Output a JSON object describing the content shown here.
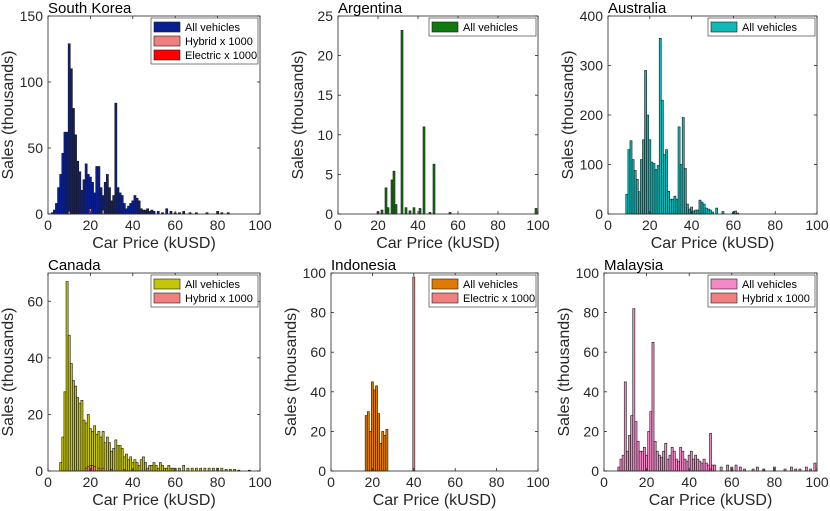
{
  "chart_data": [
    {
      "type": "histogram",
      "title": "South Korea",
      "xlabel": "Car Price (kUSD)",
      "ylabel": "Sales (thousands)",
      "xlim": [
        0,
        100
      ],
      "ylim": [
        0,
        150
      ],
      "xticks": [
        "0",
        "20",
        "40",
        "60",
        "80",
        "100"
      ],
      "yticks": [
        "0",
        "50",
        "100",
        "150"
      ],
      "legend_position": "top-right",
      "series": [
        {
          "name": "All vehicles",
          "color": "#0a1f8f",
          "bin_width": 1,
          "x": [
            2,
            3,
            4,
            5,
            6,
            7,
            8,
            9,
            10,
            11,
            12,
            13,
            14,
            15,
            16,
            17,
            18,
            19,
            20,
            21,
            22,
            23,
            24,
            25,
            26,
            27,
            28,
            29,
            30,
            31,
            32,
            33,
            34,
            35,
            36,
            37,
            38,
            39,
            40,
            41,
            42,
            43,
            44,
            45,
            46,
            47,
            48,
            49,
            50,
            52,
            54,
            56,
            58,
            60,
            62,
            64,
            67,
            70,
            75,
            80,
            82,
            85
          ],
          "y": [
            1,
            3,
            8,
            20,
            30,
            46,
            62,
            62,
            129,
            110,
            80,
            60,
            40,
            32,
            18,
            26,
            38,
            30,
            28,
            24,
            16,
            36,
            36,
            20,
            14,
            24,
            30,
            20,
            10,
            14,
            84,
            20,
            16,
            14,
            8,
            4,
            6,
            8,
            10,
            14,
            12,
            10,
            4,
            3,
            3,
            4,
            2,
            3,
            2,
            2,
            1,
            4,
            2,
            1,
            1,
            2,
            1,
            1,
            1,
            2,
            1,
            1
          ]
        },
        {
          "name": "Hybrid x 1000",
          "color": "#f08080",
          "bin_width": 1,
          "x": [
            10,
            20,
            26
          ],
          "y": [
            2,
            4,
            3
          ]
        },
        {
          "name": "Electric x 1000",
          "color": "#ff0000",
          "bin_width": 1,
          "x": [
            40
          ],
          "y": [
            0.5
          ]
        }
      ]
    },
    {
      "type": "histogram",
      "title": "Argentina",
      "xlabel": "Car Price (kUSD)",
      "ylabel": "Sales (thousands)",
      "xlim": [
        0,
        100
      ],
      "ylim": [
        0,
        25
      ],
      "xticks": [
        "0",
        "20",
        "40",
        "60",
        "80",
        "100"
      ],
      "yticks": [
        "0",
        "5",
        "10",
        "15",
        "20",
        "25"
      ],
      "legend_position": "top-right",
      "series": [
        {
          "name": "All vehicles",
          "color": "#0f7a0f",
          "bin_width": 1,
          "x": [
            20,
            22,
            24,
            25,
            27,
            28,
            29,
            32,
            34,
            36,
            38,
            41,
            43,
            46,
            48,
            56,
            99
          ],
          "y": [
            0.3,
            0.5,
            3.3,
            0.8,
            4.3,
            5.4,
            1.2,
            23.2,
            0.8,
            0.4,
            0.8,
            0.7,
            11.0,
            0.2,
            6.3,
            0.2,
            0.7
          ]
        }
      ]
    },
    {
      "type": "histogram",
      "title": "Australia",
      "xlabel": "Car Price (kUSD)",
      "ylabel": "Sales (thousands)",
      "xlim": [
        0,
        100
      ],
      "ylim": [
        0,
        400
      ],
      "xticks": [
        "0",
        "20",
        "40",
        "60",
        "80",
        "100"
      ],
      "yticks": [
        "0",
        "100",
        "200",
        "300",
        "400"
      ],
      "legend_position": "top-right",
      "series": [
        {
          "name": "All vehicles",
          "color": "#11b8b8",
          "bin_width": 1,
          "x": [
            9,
            10,
            11,
            12,
            13,
            14,
            15,
            16,
            17,
            18,
            19,
            20,
            21,
            22,
            23,
            24,
            25,
            26,
            27,
            28,
            29,
            30,
            31,
            32,
            33,
            34,
            35,
            36,
            37,
            38,
            39,
            40,
            41,
            42,
            43,
            44,
            45,
            46,
            47,
            48,
            49,
            50,
            52,
            55,
            60,
            61,
            62
          ],
          "y": [
            40,
            130,
            148,
            110,
            88,
            70,
            45,
            110,
            150,
            290,
            200,
            150,
            105,
            102,
            90,
            98,
            355,
            230,
            120,
            130,
            46,
            30,
            30,
            36,
            30,
            176,
            100,
            195,
            92,
            20,
            10,
            14,
            6,
            8,
            8,
            28,
            24,
            20,
            12,
            10,
            8,
            4,
            12,
            5,
            4,
            6,
            2
          ]
        }
      ]
    },
    {
      "type": "histogram",
      "title": "Canada",
      "xlabel": "Car Price (kUSD)",
      "ylabel": "Sales (thousands)",
      "xlim": [
        0,
        100
      ],
      "ylim": [
        0,
        70
      ],
      "xticks": [
        "0",
        "20",
        "40",
        "60",
        "80",
        "100"
      ],
      "yticks": [
        "0",
        "20",
        "40",
        "60"
      ],
      "legend_position": "top-right",
      "series": [
        {
          "name": "All vehicles",
          "color": "#c5c50a",
          "bin_width": 1,
          "x": [
            6,
            7,
            8,
            9,
            10,
            11,
            12,
            13,
            14,
            15,
            16,
            17,
            18,
            19,
            20,
            21,
            22,
            23,
            24,
            25,
            26,
            27,
            28,
            29,
            30,
            31,
            32,
            33,
            34,
            35,
            36,
            37,
            38,
            39,
            40,
            41,
            42,
            43,
            44,
            45,
            46,
            47,
            48,
            49,
            50,
            51,
            52,
            53,
            54,
            55,
            56,
            57,
            58,
            59,
            60,
            62,
            64,
            66,
            68,
            70,
            72,
            74,
            76,
            78,
            80,
            82,
            84,
            86,
            88,
            90,
            95
          ],
          "y": [
            3,
            12,
            28,
            67,
            48,
            38,
            32,
            30,
            26,
            24,
            25,
            18,
            17,
            20,
            15,
            14,
            16,
            13,
            14,
            12,
            14,
            10,
            12,
            10,
            7,
            8,
            11,
            9,
            9,
            8,
            5,
            6,
            4,
            5,
            3,
            4,
            3,
            2,
            4,
            5,
            3,
            1,
            2,
            2,
            3,
            2,
            1,
            3,
            2,
            1,
            1,
            2,
            1,
            1,
            1,
            1,
            2,
            1,
            1,
            1,
            1,
            1,
            1,
            1,
            1,
            1,
            0.6,
            0.6,
            0.6,
            0.3,
            0.3
          ]
        },
        {
          "name": "Hybrid x 1000",
          "color": "#f08080",
          "bin_width": 1,
          "x": [
            18,
            19,
            20,
            21,
            22,
            24,
            26,
            30,
            36
          ],
          "y": [
            1,
            1.5,
            2,
            2,
            1.5,
            1,
            1,
            0.6,
            0.5
          ]
        }
      ]
    },
    {
      "type": "histogram",
      "title": "Indonesia",
      "xlabel": "Car Price (kUSD)",
      "ylabel": "Sales (thousands)",
      "xlim": [
        0,
        100
      ],
      "ylim": [
        0,
        100
      ],
      "xticks": [
        "0",
        "20",
        "40",
        "60",
        "80",
        "100"
      ],
      "yticks": [
        "0",
        "20",
        "40",
        "60",
        "80",
        "100"
      ],
      "legend_position": "top-right",
      "series": [
        {
          "name": "All vehicles",
          "color": "#df7b00",
          "bin_width": 1,
          "x": [
            17,
            18,
            19,
            20,
            21,
            22,
            23,
            24,
            25,
            26,
            27
          ],
          "y": [
            28,
            30,
            20,
            45,
            41,
            43,
            29,
            14,
            20,
            18,
            21
          ]
        },
        {
          "name": "Electric x 1000",
          "color": "#f08080",
          "bin_width": 1,
          "x": [
            40
          ],
          "y": [
            98
          ]
        }
      ]
    },
    {
      "type": "histogram",
      "title": "Malaysia",
      "xlabel": "Car Price (kUSD)",
      "ylabel": "Sales (thousands)",
      "xlim": [
        0,
        100
      ],
      "ylim": [
        0,
        100
      ],
      "xticks": [
        "0",
        "20",
        "40",
        "60",
        "80",
        "100"
      ],
      "yticks": [
        "0",
        "20",
        "40",
        "60",
        "80",
        "100"
      ],
      "legend_position": "top-right",
      "series": [
        {
          "name": "All vehicles",
          "color": "#f28ac8",
          "bin_width": 1,
          "x": [
            7,
            8,
            9,
            10,
            11,
            12,
            13,
            14,
            15,
            16,
            17,
            18,
            19,
            20,
            21,
            22,
            23,
            24,
            25,
            26,
            27,
            28,
            29,
            30,
            31,
            32,
            33,
            34,
            35,
            36,
            37,
            38,
            39,
            40,
            41,
            42,
            43,
            44,
            45,
            46,
            47,
            48,
            49,
            50,
            51,
            52,
            55,
            58,
            60,
            62,
            64,
            66,
            70,
            72,
            75,
            80,
            85,
            88,
            90,
            92,
            95,
            97,
            99
          ],
          "y": [
            2,
            6,
            8,
            45,
            10,
            18,
            28,
            82,
            25,
            15,
            10,
            10,
            12,
            8,
            20,
            30,
            65,
            15,
            10,
            8,
            7,
            10,
            14,
            6,
            8,
            12,
            10,
            6,
            5,
            12,
            10,
            6,
            5,
            8,
            10,
            6,
            8,
            6,
            5,
            4,
            6,
            4,
            3,
            19,
            3,
            3,
            2,
            3,
            2,
            3,
            2,
            1,
            1,
            2,
            1,
            2,
            1,
            2,
            1,
            1,
            2,
            1,
            4
          ]
        },
        {
          "name": "Hybrid x 1000",
          "color": "#f08080",
          "bin_width": 1,
          "x": [
            50,
            60,
            75
          ],
          "y": [
            1,
            1,
            0.5
          ]
        }
      ]
    }
  ]
}
